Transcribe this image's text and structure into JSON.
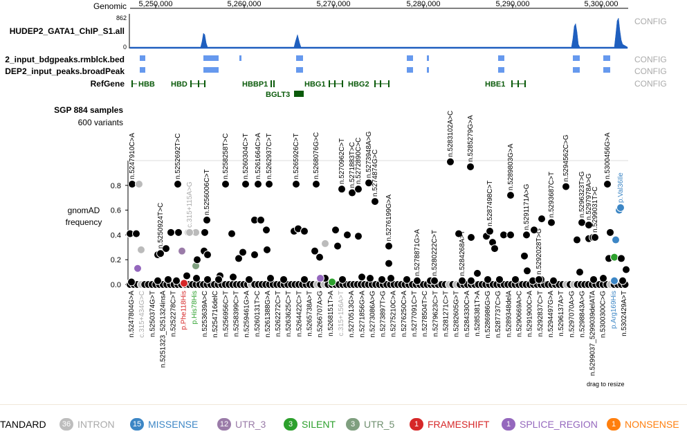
{
  "header": {
    "axis_label": "Genomic",
    "coords": [
      "5,250,000",
      "5,260,000",
      "5,270,000",
      "5,280,000",
      "5,290,000",
      "5,300,000"
    ]
  },
  "tracks": [
    {
      "name": "HUDEP2_GATA1_ChIP_S1.all",
      "config": "CONFIG",
      "ymax": "862",
      "ymin": "0"
    },
    {
      "name": "2_input_bdgpeaks.rmblck.bed",
      "config": "CONFIG"
    },
    {
      "name": "DEP2_input_peaks.broadPeak",
      "config": "CONFIG"
    },
    {
      "name": "RefGene",
      "config": "CONFIG"
    }
  ],
  "genes": [
    "HBB",
    "HBD",
    "HBBP1",
    "BGLT3",
    "HBG1",
    "HBG2",
    "HBE1"
  ],
  "sgp": {
    "title": "SGP 884 samples",
    "subtitle": "600 variants"
  },
  "chart_data": {
    "type": "scatter",
    "ylabel": "gnomAD frequency",
    "ylim": [
      0,
      1
    ],
    "yticks": [
      "0.0",
      "0.2",
      "0.4",
      "0.6",
      "0.8"
    ],
    "top_labels": [
      {
        "text": "n.5247910C>A",
        "y": 0.81
      },
      {
        "text": "n.5250924T>C",
        "y": 0.25
      },
      {
        "text": "c.315+115A>G",
        "y": 0.42
      },
      {
        "text": "n.5252692T>C",
        "y": 0.81
      },
      {
        "text": "n.5256006C>T",
        "y": 0.52
      },
      {
        "text": "n.5258258T>C",
        "y": 0.81
      },
      {
        "text": "n.5260304C>T",
        "y": 0.81
      },
      {
        "text": "n.5261664C>A",
        "y": 0.81
      },
      {
        "text": "n.5262937C>T",
        "y": 0.81
      },
      {
        "text": "n.5265926C>T",
        "y": 0.81
      },
      {
        "text": "n.5268076G>C",
        "y": 0.81
      },
      {
        "text": "n.5270962C>T",
        "y": 0.77
      },
      {
        "text": "n.5271883T>C",
        "y": 0.74
      },
      {
        "text": "n.5272890C>C",
        "y": 0.77
      },
      {
        "text": "n.5273948A>G",
        "y": 0.82
      },
      {
        "text": "n.5274874G>C",
        "y": 0.67
      },
      {
        "text": "n.5276199G>A",
        "y": 0.31
      },
      {
        "text": "n.5278871G>A",
        "y": 0.03
      },
      {
        "text": "n.5280222C>T",
        "y": 0.03
      },
      {
        "text": "n.5283102A>C",
        "y": 0.99
      },
      {
        "text": "n.5284268A>T",
        "y": 0.03
      },
      {
        "text": "n.5285279G>A",
        "y": 0.95
      },
      {
        "text": "n.5287498C>T",
        "y": 0.43
      },
      {
        "text": "n.5289803G>A",
        "y": 0.72
      },
      {
        "text": "n.5291171A>G",
        "y": 0.4
      },
      {
        "text": "n.5292028T>G",
        "y": 0.04
      },
      {
        "text": "n.5293687C>T",
        "y": 0.5
      },
      {
        "text": "n.5294562C>G",
        "y": 0.79
      },
      {
        "text": "n.5296323T>G",
        "y": 0.5
      },
      {
        "text": "n.5297978A>G",
        "y": 0.48
      },
      {
        "text": "n.5299031T>C",
        "y": 0.38
      },
      {
        "text": "n.5300456G>A",
        "y": 0.81
      },
      {
        "text": "p.Val36Ile",
        "y": 0.62
      }
    ],
    "bottom_labels": [
      "n.5247804G>A",
      "c.315+434G>C",
      "n.5250374G>T",
      "n.5251323_5251324insA",
      "n.5252278C>T",
      "p.Phe118His",
      "p.His78His",
      "n.5253639A>C",
      "n.5254716delC",
      "n.5256956C>T",
      "n.5258399C>T",
      "n.5259461G>A",
      "n.5260131T>C",
      "n.5261388G>A",
      "n.5262272C>T",
      "n.5263625C>T",
      "n.5264422C>T",
      "n.5265738A>T",
      "n.5266707A>G",
      "n.5268151T>A",
      "c.315+156A>T",
      "n.5270513G>A",
      "n.5271856G>A",
      "n.5273086A>G",
      "n.5273897T>G",
      "n.5275210C>A",
      "n.5276250C>A",
      "n.5277091C>T",
      "n.5278504T>C",
      "n.5279623C>T",
      "n.5281271C>T",
      "n.5282605G>T",
      "n.5284330C>A",
      "n.5285381T>A",
      "n.5286986G>G",
      "n.5287737C>G",
      "n.5289348delA",
      "n.5290669A>C",
      "n.5291900C>A",
      "n.5292837C>T",
      "n.5294497G>A",
      "n.5296137A>T",
      "n.5297070A>G",
      "n.5298843A>G",
      "n.5299037_5299039delATA",
      "n.5300300C>G",
      "p.Arg169His",
      "n.5302429A>T"
    ]
  },
  "resize_hint": "drag to resize",
  "legend": [
    {
      "label": "TANDARD",
      "count": "",
      "color": "#000000",
      "text_color": "#000000"
    },
    {
      "label": "INTRON",
      "count": "36",
      "color": "#bdbdbd",
      "text_color": "#aaaaaa"
    },
    {
      "label": "MISSENSE",
      "count": "15",
      "color": "#3c86c5",
      "text_color": "#3c86c5"
    },
    {
      "label": "UTR_3",
      "count": "12",
      "color": "#9a7ba8",
      "text_color": "#9a7ba8"
    },
    {
      "label": "SILENT",
      "count": "3",
      "color": "#2ca02c",
      "text_color": "#2ca02c"
    },
    {
      "label": "UTR_5",
      "count": "3",
      "color": "#7f9f7f",
      "text_color": "#6f8f6f"
    },
    {
      "label": "FRAMESHIFT",
      "count": "1",
      "color": "#d62728",
      "text_color": "#d62728"
    },
    {
      "label": "SPLICE_REGION",
      "count": "1",
      "color": "#9467bd",
      "text_color": "#9467bd"
    },
    {
      "label": "NONSENSE",
      "count": "1",
      "color": "#ff7f0e",
      "text_color": "#ff7f0e"
    }
  ]
}
